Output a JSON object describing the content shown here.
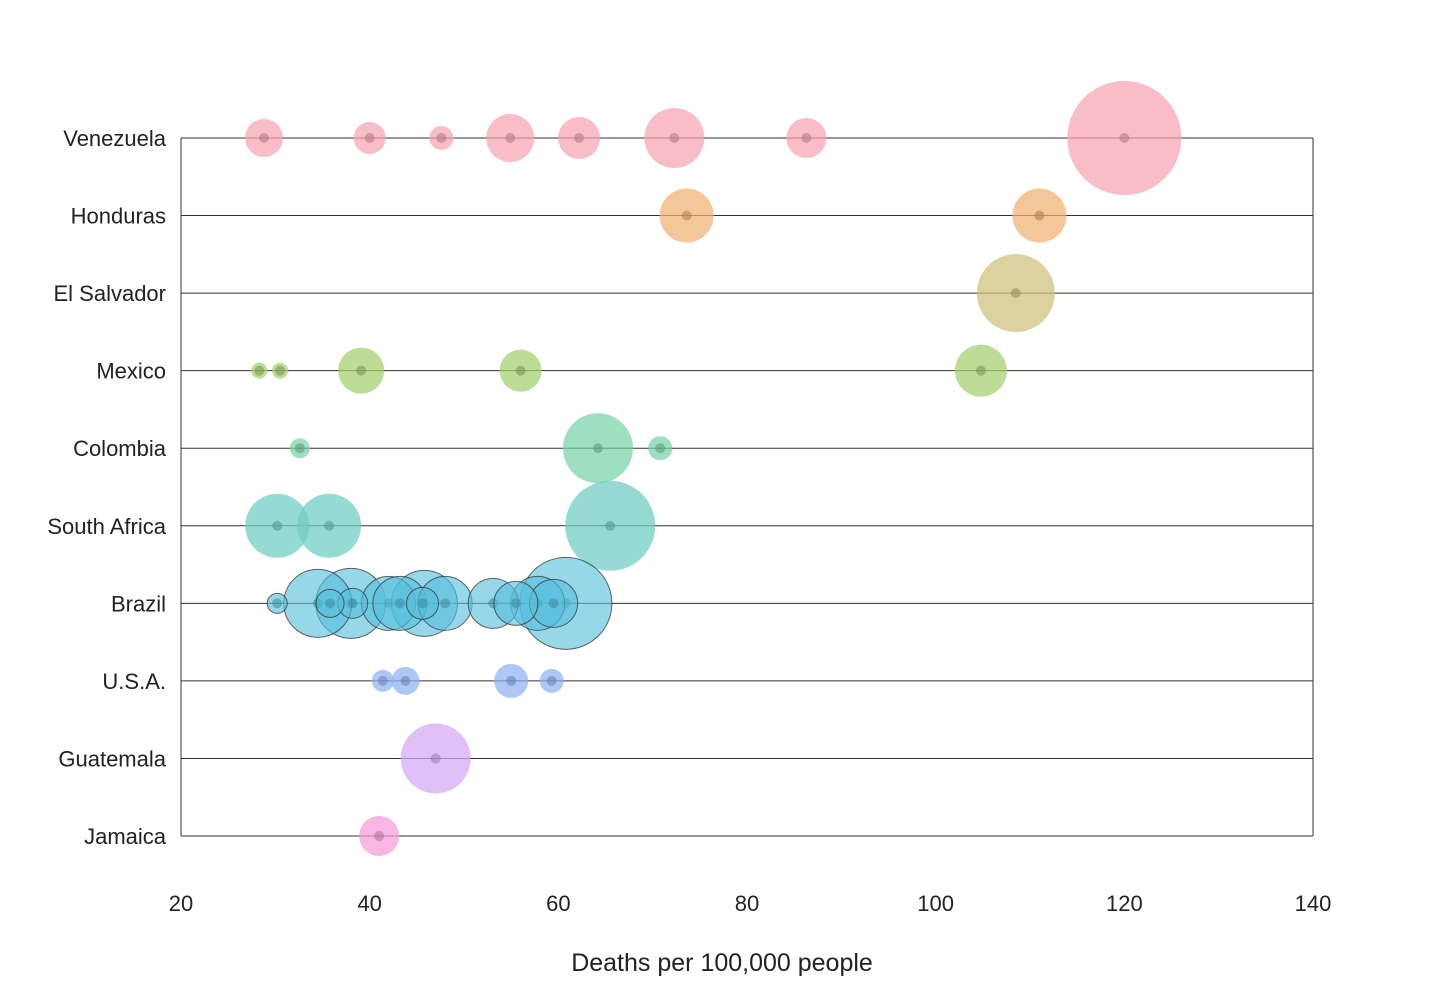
{
  "chart_data": {
    "type": "scatter",
    "subtype": "bubble",
    "xlabel": "Deaths per 100,000 people",
    "ylabel": "",
    "xlim": [
      20,
      140
    ],
    "x_ticks": [
      20,
      40,
      60,
      80,
      100,
      120,
      140
    ],
    "grid": "horizontal lines at each category",
    "legend": "none",
    "categories": [
      "Venezuela",
      "Honduras",
      "El Salvador",
      "Mexico",
      "Colombia",
      "South Africa",
      "Brazil",
      "U.S.A.",
      "Guatemala",
      "Jamaica"
    ],
    "series": [
      {
        "category": "Venezuela",
        "color": "#f7a3b1",
        "points": [
          {
            "x": 28.8,
            "size": 19
          },
          {
            "x": 40.0,
            "size": 16
          },
          {
            "x": 47.6,
            "size": 12
          },
          {
            "x": 54.9,
            "size": 24
          },
          {
            "x": 62.2,
            "size": 21
          },
          {
            "x": 72.3,
            "size": 30
          },
          {
            "x": 86.3,
            "size": 20
          },
          {
            "x": 120.0,
            "size": 57
          }
        ]
      },
      {
        "category": "Honduras",
        "color": "#f0b070",
        "points": [
          {
            "x": 73.6,
            "size": 27
          },
          {
            "x": 111.0,
            "size": 27
          }
        ]
      },
      {
        "category": "El Salvador",
        "color": "#cfc07a",
        "points": [
          {
            "x": 108.5,
            "size": 39
          }
        ]
      },
      {
        "category": "Mexico",
        "color": "#a3cf6e",
        "points": [
          {
            "x": 28.3,
            "size": 8
          },
          {
            "x": 30.5,
            "size": 8
          },
          {
            "x": 39.1,
            "size": 23
          },
          {
            "x": 56.0,
            "size": 21
          },
          {
            "x": 104.8,
            "size": 26
          }
        ]
      },
      {
        "category": "Colombia",
        "color": "#77d2a6",
        "points": [
          {
            "x": 32.6,
            "size": 10
          },
          {
            "x": 64.2,
            "size": 35
          },
          {
            "x": 70.8,
            "size": 12
          }
        ]
      },
      {
        "category": "South Africa",
        "color": "#6ecdc2",
        "points": [
          {
            "x": 30.2,
            "size": 32
          },
          {
            "x": 35.7,
            "size": 32
          },
          {
            "x": 65.5,
            "size": 45
          }
        ]
      },
      {
        "category": "Brazil",
        "color": "#55bedb",
        "points": [
          {
            "x": 30.2,
            "size": 10
          },
          {
            "x": 34.5,
            "size": 34
          },
          {
            "x": 35.8,
            "size": 14
          },
          {
            "x": 38.0,
            "size": 35
          },
          {
            "x": 38.2,
            "size": 15
          },
          {
            "x": 42.0,
            "size": 27
          },
          {
            "x": 43.2,
            "size": 27
          },
          {
            "x": 45.6,
            "size": 16
          },
          {
            "x": 45.8,
            "size": 33
          },
          {
            "x": 48.0,
            "size": 27
          },
          {
            "x": 53.1,
            "size": 25
          },
          {
            "x": 55.5,
            "size": 22
          },
          {
            "x": 57.8,
            "size": 27
          },
          {
            "x": 60.8,
            "size": 46
          },
          {
            "x": 59.5,
            "size": 24
          }
        ]
      },
      {
        "category": "U.S.A.",
        "color": "#8fb2f3",
        "points": [
          {
            "x": 41.4,
            "size": 11
          },
          {
            "x": 43.8,
            "size": 14
          },
          {
            "x": 55.0,
            "size": 17
          },
          {
            "x": 59.3,
            "size": 12
          }
        ]
      },
      {
        "category": "Guatemala",
        "color": "#d5a8f4",
        "points": [
          {
            "x": 47.0,
            "size": 35
          }
        ]
      },
      {
        "category": "Jamaica",
        "color": "#f59adb",
        "points": [
          {
            "x": 41.0,
            "size": 20
          }
        ]
      }
    ],
    "highlighted_outlines": {
      "category": "Brazil",
      "outline_color": "#333333"
    }
  },
  "colors": {
    "gridline": "#333333",
    "text": "#222222",
    "center_dot_darken": 0.28
  }
}
